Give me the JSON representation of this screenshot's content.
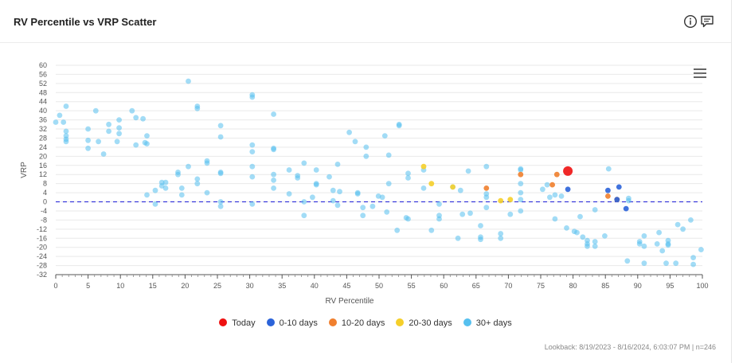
{
  "header": {
    "title": "RV Percentile vs VRP Scatter",
    "info_icon": "info-icon",
    "comment_icon": "comment-icon",
    "menu_icon": "hamburger-menu-icon"
  },
  "footer": {
    "text": "Lookback: 8/19/2023 - 8/16/2024, 6:03:07 PM | n=246"
  },
  "colors": {
    "today": "#ee1111",
    "d0_10": "#2b63d9",
    "d10_20": "#f07f2e",
    "d20_30": "#f5cf2a",
    "d30_plus": "#56c0ef",
    "zero_line": "#3b3bdc",
    "grid": "#e9e9e9"
  },
  "chart_data": {
    "type": "scatter",
    "title": "RV Percentile vs VRP Scatter",
    "xlabel": "RV Percentile",
    "ylabel": "VRP",
    "xlim": [
      0,
      100
    ],
    "ylim": [
      -32,
      60
    ],
    "x_ticks": [
      "0",
      "5",
      "10",
      "15",
      "20",
      "25",
      "30",
      "35",
      "40",
      "45",
      "50",
      "55",
      "60",
      "65",
      "70",
      "75",
      "80",
      "85",
      "90",
      "95",
      "100"
    ],
    "y_ticks": [
      "60",
      "56",
      "52",
      "48",
      "44",
      "40",
      "36",
      "32",
      "28",
      "24",
      "20",
      "16",
      "12",
      "8",
      "4",
      "0",
      "-4",
      "-8",
      "-12",
      "-16",
      "-20",
      "-24",
      "-28",
      "-32"
    ],
    "reference_line": {
      "y": 0,
      "style": "dashed"
    },
    "legend_position": "bottom",
    "grid": true,
    "series": [
      {
        "name": "Today",
        "key": "today",
        "points": [
          [
            79.2,
            13.5
          ]
        ]
      },
      {
        "name": "0-10 days",
        "key": "d0_10",
        "points": [
          [
            79.2,
            5.5
          ],
          [
            85.4,
            5
          ],
          [
            87.1,
            6.5
          ],
          [
            86.8,
            1
          ],
          [
            88.2,
            -3
          ]
        ]
      },
      {
        "name": "10-20 days",
        "key": "d10_20",
        "points": [
          [
            66.6,
            6
          ],
          [
            71.9,
            12
          ],
          [
            76.8,
            7.5
          ],
          [
            77.5,
            12
          ],
          [
            85.4,
            2.5
          ],
          [
            86.8,
            1
          ]
        ]
      },
      {
        "name": "20-30 days",
        "key": "d20_30",
        "points": [
          [
            56.9,
            15.5
          ],
          [
            58.1,
            8
          ],
          [
            61.4,
            6.5
          ],
          [
            68.8,
            0.5
          ],
          [
            70.3,
            1
          ]
        ]
      },
      {
        "name": "30+ days",
        "key": "d30_plus",
        "points": [
          [
            0,
            35
          ],
          [
            0.6,
            38
          ],
          [
            1.2,
            35
          ],
          [
            1.6,
            42
          ],
          [
            1.6,
            31
          ],
          [
            1.6,
            29
          ],
          [
            1.6,
            26.5
          ],
          [
            1.6,
            27.5
          ],
          [
            5,
            32
          ],
          [
            5,
            27
          ],
          [
            5,
            23.5
          ],
          [
            6.2,
            40
          ],
          [
            6.6,
            26.5
          ],
          [
            7.4,
            21
          ],
          [
            8.2,
            31
          ],
          [
            8.2,
            34
          ],
          [
            9.5,
            26.5
          ],
          [
            9.8,
            36
          ],
          [
            9.8,
            30
          ],
          [
            9.8,
            32.5
          ],
          [
            11.8,
            40
          ],
          [
            12.4,
            25
          ],
          [
            12.4,
            37
          ],
          [
            13.5,
            36.5
          ],
          [
            13.8,
            26
          ],
          [
            14.1,
            29
          ],
          [
            14.1,
            25.5
          ],
          [
            14.1,
            3
          ],
          [
            15.4,
            5
          ],
          [
            15.4,
            -1
          ],
          [
            16.4,
            7
          ],
          [
            16.4,
            8.5
          ],
          [
            17,
            6
          ],
          [
            17,
            8.5
          ],
          [
            18.9,
            12
          ],
          [
            18.9,
            13
          ],
          [
            19.5,
            6
          ],
          [
            19.5,
            3
          ],
          [
            20.5,
            15.5
          ],
          [
            20.5,
            53
          ],
          [
            21.9,
            42
          ],
          [
            21.9,
            41
          ],
          [
            21.9,
            10
          ],
          [
            21.9,
            8
          ],
          [
            23.4,
            18
          ],
          [
            23.4,
            17
          ],
          [
            23.4,
            4
          ],
          [
            25.5,
            33.5
          ],
          [
            25.5,
            28.5
          ],
          [
            25.5,
            13
          ],
          [
            25.5,
            12.5
          ],
          [
            25.5,
            0
          ],
          [
            25.5,
            -2
          ],
          [
            30.4,
            47
          ],
          [
            30.4,
            46
          ],
          [
            30.4,
            25
          ],
          [
            30.4,
            22
          ],
          [
            30.4,
            15.5
          ],
          [
            30.4,
            11
          ],
          [
            30.4,
            -1
          ],
          [
            33.7,
            38.5
          ],
          [
            33.7,
            23.5
          ],
          [
            33.7,
            23
          ],
          [
            33.7,
            12
          ],
          [
            33.7,
            9.5
          ],
          [
            33.7,
            6
          ],
          [
            36.1,
            14
          ],
          [
            36.1,
            3.5
          ],
          [
            37.4,
            11.5
          ],
          [
            37.4,
            10.5
          ],
          [
            38.4,
            17
          ],
          [
            38.4,
            0
          ],
          [
            38.4,
            -6
          ],
          [
            39.7,
            2
          ],
          [
            40.3,
            14
          ],
          [
            40.3,
            8
          ],
          [
            40.3,
            7.5
          ],
          [
            42.3,
            11
          ],
          [
            42.9,
            5
          ],
          [
            42.9,
            0.5
          ],
          [
            43.6,
            -1.5
          ],
          [
            43.6,
            16.5
          ],
          [
            43.9,
            4.5
          ],
          [
            45.4,
            30.5
          ],
          [
            46.3,
            26.5
          ],
          [
            46.7,
            4
          ],
          [
            46.7,
            3.5
          ],
          [
            47.5,
            -6
          ],
          [
            47.5,
            -2.5
          ],
          [
            48,
            24
          ],
          [
            48,
            20
          ],
          [
            49,
            -2
          ],
          [
            49.9,
            2.5
          ],
          [
            50.5,
            2
          ],
          [
            50.9,
            29
          ],
          [
            51.2,
            -4.5
          ],
          [
            51.5,
            20.5
          ],
          [
            51.5,
            8
          ],
          [
            52.8,
            -12.5
          ],
          [
            53.1,
            34
          ],
          [
            53.1,
            33.5
          ],
          [
            54.2,
            -7
          ],
          [
            54.5,
            12.5
          ],
          [
            54.5,
            10.5
          ],
          [
            54.5,
            -7.5
          ],
          [
            56.9,
            14
          ],
          [
            56.9,
            6
          ],
          [
            58.1,
            -12.5
          ],
          [
            59.3,
            -1
          ],
          [
            59.3,
            -6
          ],
          [
            59.3,
            -7.5
          ],
          [
            61.4,
            6.5
          ],
          [
            62.2,
            -16
          ],
          [
            62.6,
            5
          ],
          [
            62.9,
            -5.5
          ],
          [
            63.8,
            13.5
          ],
          [
            64.1,
            -5
          ],
          [
            65.7,
            -10.5
          ],
          [
            65.7,
            -15.5
          ],
          [
            65.7,
            -16.5
          ],
          [
            66.6,
            15.5
          ],
          [
            66.6,
            3.5
          ],
          [
            66.6,
            2
          ],
          [
            66.6,
            -2.5
          ],
          [
            68.8,
            -14
          ],
          [
            68.8,
            -16
          ],
          [
            70.3,
            -5.5
          ],
          [
            71.9,
            14.5
          ],
          [
            71.9,
            14
          ],
          [
            71.9,
            8
          ],
          [
            71.9,
            4
          ],
          [
            71.9,
            1
          ],
          [
            71.9,
            -4
          ],
          [
            75.3,
            5.5
          ],
          [
            76,
            7.5
          ],
          [
            76.4,
            2
          ],
          [
            77.2,
            -7.5
          ],
          [
            77.2,
            3
          ],
          [
            78.2,
            2.5
          ],
          [
            79,
            -11.5
          ],
          [
            80.2,
            -13
          ],
          [
            80.6,
            -13.5
          ],
          [
            81.1,
            -6.5
          ],
          [
            81.5,
            -15.5
          ],
          [
            82.2,
            -17
          ],
          [
            82.2,
            -18.5
          ],
          [
            82.2,
            -19.5
          ],
          [
            83.4,
            -3.5
          ],
          [
            83.4,
            -17.5
          ],
          [
            83.4,
            -19.5
          ],
          [
            84.9,
            -15
          ],
          [
            85.5,
            14.5
          ],
          [
            88.4,
            -26
          ],
          [
            88.6,
            1.5
          ],
          [
            88.6,
            0.5
          ],
          [
            90.3,
            -17.5
          ],
          [
            90.3,
            -18.5
          ],
          [
            91,
            -15
          ],
          [
            91,
            -19.5
          ],
          [
            91,
            -27
          ],
          [
            93,
            -18.5
          ],
          [
            93.3,
            -13.5
          ],
          [
            93.8,
            -21.5
          ],
          [
            94.4,
            -27
          ],
          [
            94.7,
            -17
          ],
          [
            94.7,
            -18.5
          ],
          [
            94.7,
            -19
          ],
          [
            95.9,
            -27
          ],
          [
            96.2,
            -10
          ],
          [
            97,
            -12
          ],
          [
            98.2,
            -8
          ],
          [
            98.6,
            -24.5
          ],
          [
            98.6,
            -27.5
          ],
          [
            99.8,
            -21
          ]
        ]
      }
    ]
  }
}
